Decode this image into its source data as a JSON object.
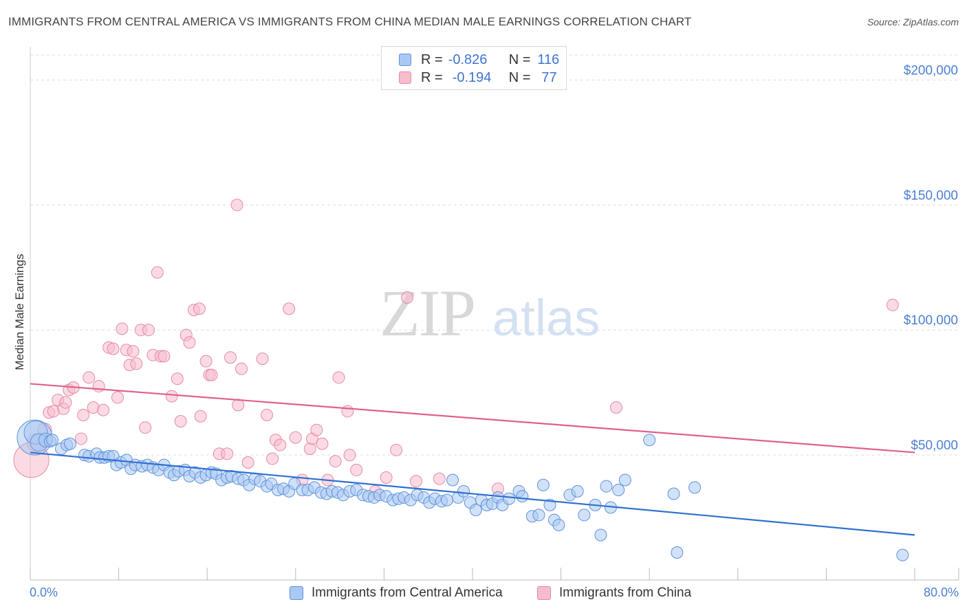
{
  "title": "IMMIGRANTS FROM CENTRAL AMERICA VS IMMIGRANTS FROM CHINA MEDIAN MALE EARNINGS CORRELATION CHART",
  "source": "Source: ZipAtlas.com",
  "watermark": {
    "zip": "ZIP",
    "atlas": "atlas"
  },
  "legend_top": [
    {
      "r_label": "R =",
      "r_value": "-0.826",
      "n_label": "N =",
      "n_value": "116"
    },
    {
      "r_label": "R =",
      "r_value": "-0.194",
      "n_label": "N =",
      "n_value": "77"
    }
  ],
  "legend_bottom": [
    "Immigrants from Central America",
    "Immigrants from China"
  ],
  "colors": {
    "blue_fill": "#a9c8f3",
    "blue_stroke": "#5f93dc",
    "blue_line": "#2f6fd0",
    "pink_fill": "#f7bccd",
    "pink_stroke": "#e58aa5",
    "pink_line": "#e0608a",
    "axis_label": "#4a7fd6",
    "grid": "#dddddd"
  },
  "chart_data": {
    "type": "scatter",
    "title": "IMMIGRANTS FROM CENTRAL AMERICA VS IMMIGRANTS FROM CHINA MEDIAN MALE EARNINGS CORRELATION CHART",
    "xlabel": "",
    "ylabel": "Median Male Earnings",
    "xlim": [
      0,
      80
    ],
    "ylim": [
      0,
      210000
    ],
    "x_tick_labels": [
      "0.0%",
      "80.0%"
    ],
    "y_ticks": [
      50000,
      100000,
      150000,
      200000
    ],
    "y_tick_labels": [
      "$50,000",
      "$100,000",
      "$150,000",
      "$200,000"
    ],
    "grid": "horizontal dashed",
    "legend_position": "top-center",
    "series": [
      {
        "name": "Immigrants from Central America",
        "R": -0.826,
        "N": 116,
        "trend": {
          "x": [
            0,
            80
          ],
          "y": [
            51000,
            18000
          ]
        },
        "points": [
          [
            0.4,
            57000,
            3
          ],
          [
            0.5,
            59000,
            2
          ],
          [
            0.8,
            55000,
            1.5
          ],
          [
            1.4,
            56000,
            1.2
          ],
          [
            1.8,
            55500,
            1
          ],
          [
            2.0,
            56000,
            1
          ],
          [
            2.8,
            52500,
            1
          ],
          [
            3.3,
            54000,
            1
          ],
          [
            3.6,
            54500,
            1
          ],
          [
            4.9,
            50000,
            1
          ],
          [
            5.3,
            49500,
            1
          ],
          [
            6.0,
            50500,
            1
          ],
          [
            6.3,
            49000,
            1
          ],
          [
            6.7,
            49000,
            1
          ],
          [
            7.1,
            49500,
            1
          ],
          [
            7.5,
            49500,
            1
          ],
          [
            7.8,
            46000,
            1
          ],
          [
            8.2,
            47000,
            1
          ],
          [
            8.7,
            48000,
            1
          ],
          [
            9.1,
            44500,
            1
          ],
          [
            9.5,
            46000,
            1
          ],
          [
            10.1,
            45500,
            1
          ],
          [
            10.6,
            46000,
            1
          ],
          [
            11.1,
            45000,
            1
          ],
          [
            11.6,
            44000,
            1
          ],
          [
            12.1,
            46000,
            1
          ],
          [
            12.6,
            43000,
            1
          ],
          [
            13.0,
            42000,
            1
          ],
          [
            13.4,
            43500,
            1
          ],
          [
            14.0,
            44000,
            1
          ],
          [
            14.4,
            41500,
            1
          ],
          [
            14.9,
            43000,
            1
          ],
          [
            15.4,
            41000,
            1
          ],
          [
            15.9,
            42000,
            1
          ],
          [
            16.4,
            43000,
            1
          ],
          [
            16.8,
            42500,
            1
          ],
          [
            17.3,
            40000,
            1
          ],
          [
            17.8,
            41000,
            1
          ],
          [
            18.2,
            41500,
            1
          ],
          [
            18.8,
            40500,
            1
          ],
          [
            19.3,
            40000,
            1
          ],
          [
            19.8,
            38000,
            1
          ],
          [
            20.3,
            40500,
            1
          ],
          [
            20.8,
            39500,
            1
          ],
          [
            21.4,
            37500,
            1
          ],
          [
            21.8,
            38500,
            1
          ],
          [
            22.4,
            36000,
            1
          ],
          [
            22.9,
            36500,
            1
          ],
          [
            23.4,
            35500,
            1
          ],
          [
            23.9,
            38500,
            1
          ],
          [
            24.6,
            36000,
            1
          ],
          [
            25.1,
            36000,
            1
          ],
          [
            25.7,
            37000,
            1
          ],
          [
            26.3,
            35000,
            1
          ],
          [
            26.8,
            34500,
            1
          ],
          [
            27.3,
            35500,
            1
          ],
          [
            27.8,
            35000,
            1
          ],
          [
            28.3,
            34000,
            1
          ],
          [
            28.9,
            35500,
            1
          ],
          [
            29.5,
            36000,
            1
          ],
          [
            30.1,
            34000,
            1
          ],
          [
            30.6,
            33500,
            1
          ],
          [
            31.1,
            33000,
            1
          ],
          [
            31.6,
            34000,
            1
          ],
          [
            32.2,
            33500,
            1
          ],
          [
            32.8,
            32000,
            1
          ],
          [
            33.3,
            32500,
            1
          ],
          [
            33.8,
            33000,
            1
          ],
          [
            34.4,
            32000,
            1
          ],
          [
            35.0,
            34000,
            1
          ],
          [
            35.6,
            33000,
            1
          ],
          [
            36.1,
            31000,
            1
          ],
          [
            36.6,
            32500,
            1
          ],
          [
            37.2,
            31500,
            1
          ],
          [
            37.7,
            32000,
            1
          ],
          [
            38.2,
            40000,
            1
          ],
          [
            38.7,
            33000,
            1
          ],
          [
            39.2,
            35500,
            1
          ],
          [
            39.8,
            31000,
            1
          ],
          [
            40.3,
            28000,
            1
          ],
          [
            40.8,
            32000,
            1
          ],
          [
            41.3,
            30000,
            1
          ],
          [
            41.8,
            30500,
            1
          ],
          [
            42.3,
            33000,
            1
          ],
          [
            42.7,
            30000,
            1
          ],
          [
            43.3,
            32500,
            1
          ],
          [
            44.2,
            35500,
            1
          ],
          [
            44.5,
            33500,
            1
          ],
          [
            45.4,
            25500,
            1
          ],
          [
            46.0,
            26000,
            1
          ],
          [
            46.4,
            38000,
            1
          ],
          [
            47.0,
            30000,
            1
          ],
          [
            47.4,
            24000,
            1
          ],
          [
            47.8,
            22000,
            1
          ],
          [
            48.8,
            34000,
            1
          ],
          [
            49.5,
            35500,
            1
          ],
          [
            50.1,
            26000,
            1
          ],
          [
            51.1,
            30000,
            1
          ],
          [
            51.6,
            18000,
            1
          ],
          [
            52.1,
            37500,
            1
          ],
          [
            52.5,
            29000,
            1
          ],
          [
            53.2,
            36000,
            1
          ],
          [
            53.8,
            40000,
            1
          ],
          [
            56.0,
            56000,
            1
          ],
          [
            58.2,
            34500,
            1
          ],
          [
            58.5,
            11000,
            1
          ],
          [
            60.1,
            37000,
            1
          ],
          [
            78.9,
            10000,
            1
          ]
        ]
      },
      {
        "name": "Immigrants from China",
        "R": -0.194,
        "N": 77,
        "trend": {
          "x": [
            0,
            80
          ],
          "y": [
            78500,
            51000
          ]
        },
        "points": [
          [
            0.1,
            48000,
            3
          ],
          [
            0.5,
            55000,
            1.5
          ],
          [
            1.3,
            60000,
            1.2
          ],
          [
            1.7,
            67000,
            1
          ],
          [
            2.1,
            67500,
            1
          ],
          [
            2.5,
            72000,
            1
          ],
          [
            3.0,
            68500,
            1
          ],
          [
            3.2,
            71000,
            1
          ],
          [
            3.5,
            76000,
            1
          ],
          [
            3.9,
            77000,
            1
          ],
          [
            4.6,
            56500,
            1
          ],
          [
            4.8,
            66000,
            1
          ],
          [
            5.3,
            81000,
            1
          ],
          [
            5.7,
            69000,
            1
          ],
          [
            6.2,
            77500,
            1
          ],
          [
            6.6,
            68000,
            1
          ],
          [
            7.1,
            93000,
            1
          ],
          [
            7.5,
            92500,
            1
          ],
          [
            7.9,
            73000,
            1
          ],
          [
            8.3,
            100500,
            1
          ],
          [
            8.7,
            92000,
            1
          ],
          [
            9.0,
            86000,
            1
          ],
          [
            9.3,
            91500,
            1
          ],
          [
            9.6,
            86500,
            1
          ],
          [
            10.0,
            100000,
            1
          ],
          [
            10.4,
            61000,
            1
          ],
          [
            10.7,
            100000,
            1
          ],
          [
            11.1,
            90000,
            1
          ],
          [
            11.5,
            123000,
            1
          ],
          [
            11.8,
            89500,
            1
          ],
          [
            12.1,
            89500,
            1
          ],
          [
            12.8,
            73500,
            1
          ],
          [
            13.3,
            80500,
            1
          ],
          [
            13.6,
            63500,
            1
          ],
          [
            14.1,
            98000,
            1
          ],
          [
            14.4,
            95000,
            1
          ],
          [
            14.8,
            108000,
            1
          ],
          [
            15.3,
            108500,
            1
          ],
          [
            15.4,
            65500,
            1
          ],
          [
            15.9,
            87500,
            1
          ],
          [
            16.2,
            82000,
            1
          ],
          [
            16.4,
            82000,
            1
          ],
          [
            17.1,
            50500,
            1
          ],
          [
            17.8,
            50500,
            1
          ],
          [
            18.1,
            89000,
            1
          ],
          [
            18.7,
            150000,
            1
          ],
          [
            18.8,
            70000,
            1
          ],
          [
            19.1,
            84500,
            1
          ],
          [
            19.7,
            47000,
            1
          ],
          [
            21.0,
            88500,
            1
          ],
          [
            21.4,
            66000,
            1
          ],
          [
            21.9,
            48500,
            1
          ],
          [
            22.2,
            56000,
            1
          ],
          [
            22.6,
            54000,
            1
          ],
          [
            23.4,
            108500,
            1
          ],
          [
            24.0,
            57000,
            1
          ],
          [
            24.6,
            40000,
            1
          ],
          [
            25.3,
            52500,
            1
          ],
          [
            25.5,
            56500,
            1
          ],
          [
            25.9,
            60000,
            1
          ],
          [
            26.4,
            54500,
            1
          ],
          [
            26.9,
            40000,
            1
          ],
          [
            27.6,
            47500,
            1
          ],
          [
            27.9,
            81000,
            1
          ],
          [
            28.7,
            67500,
            1
          ],
          [
            28.9,
            50000,
            1
          ],
          [
            29.5,
            44000,
            1
          ],
          [
            31.2,
            35500,
            1
          ],
          [
            32.2,
            41000,
            1
          ],
          [
            33.1,
            52000,
            1
          ],
          [
            34.1,
            113000,
            1
          ],
          [
            34.9,
            39500,
            1
          ],
          [
            37.0,
            40500,
            1
          ],
          [
            42.3,
            36500,
            1
          ],
          [
            53.0,
            69000,
            1
          ],
          [
            78.0,
            110000,
            1
          ]
        ]
      }
    ]
  }
}
